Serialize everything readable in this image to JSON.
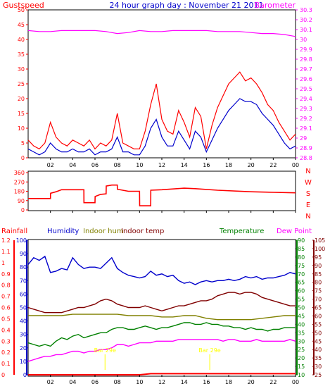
{
  "chart_data": {
    "type": "line",
    "title": "24 hour graph day : November 21 2011",
    "x_tick_labels": [
      "02",
      "04",
      "06",
      "08",
      "10",
      "12",
      "14",
      "16",
      "18",
      "20",
      "22",
      "00"
    ],
    "colors": {
      "gust": "#ff0000",
      "wind": "#0000cc",
      "barometer": "#ff00ff",
      "direction": "#ff0000",
      "humidity": "#0000cc",
      "indoor_hum": "#808000",
      "indoor_temp": "#800000",
      "temperature": "#008000",
      "dew_point": "#ff00ff",
      "rainfall": "#ff0000",
      "rain_marker": "#ffff00"
    },
    "panels": [
      {
        "id": "wind",
        "left_label": "Gustspeed",
        "right_label": "Barometer",
        "left_ticks": [
          "0",
          "5",
          "10",
          "15",
          "20",
          "25",
          "30",
          "35",
          "40",
          "45",
          "50"
        ],
        "right_ticks": [
          "28.8",
          "28.9",
          "29",
          "29.1",
          "29.2",
          "29.3",
          "29.4",
          "29.5",
          "29.6",
          "29.7",
          "29.8",
          "29.9",
          "30",
          "30.1",
          "30.2",
          "30.3"
        ],
        "ylim_left": [
          0,
          50
        ],
        "ylim_right": [
          28.8,
          30.3
        ],
        "series": [
          {
            "name": "Gustspeed",
            "axis": "left",
            "x": [
              0,
              0.5,
              1,
              1.5,
              2,
              2.5,
              3,
              3.5,
              4,
              4.5,
              5,
              5.5,
              6,
              6.5,
              7,
              7.5,
              8,
              8.5,
              9,
              9.5,
              10,
              10.5,
              11,
              11.5,
              12,
              12.5,
              13,
              13.5,
              14,
              14.5,
              15,
              15.5,
              16,
              16.5,
              17,
              17.5,
              18,
              18.5,
              19,
              19.5,
              20,
              20.5,
              21,
              21.5,
              22,
              22.5,
              23,
              23.5,
              24
            ],
            "values": [
              6,
              4,
              3,
              5,
              12,
              7,
              5,
              4,
              6,
              5,
              4,
              6,
              3,
              5,
              4,
              6,
              15,
              5,
              4,
              3,
              3,
              9,
              18,
              25,
              13,
              9,
              8,
              16,
              12,
              7,
              17,
              14,
              3,
              11,
              17,
              21,
              25,
              27,
              29,
              26,
              27,
              25,
              22,
              18,
              16,
              12,
              9,
              6,
              8
            ]
          },
          {
            "name": "Windspeed",
            "axis": "left",
            "x": [
              0,
              0.5,
              1,
              1.5,
              2,
              2.5,
              3,
              3.5,
              4,
              4.5,
              5,
              5.5,
              6,
              6.5,
              7,
              7.5,
              8,
              8.5,
              9,
              9.5,
              10,
              10.5,
              11,
              11.5,
              12,
              12.5,
              13,
              13.5,
              14,
              14.5,
              15,
              15.5,
              16,
              16.5,
              17,
              17.5,
              18,
              18.5,
              19,
              19.5,
              20,
              20.5,
              21,
              21.5,
              22,
              22.5,
              23,
              23.5,
              24
            ],
            "values": [
              3,
              2,
              1,
              2,
              5,
              3,
              2,
              2,
              3,
              2,
              2,
              3,
              1,
              2,
              2,
              3,
              7,
              2,
              2,
              1,
              1,
              4,
              10,
              13,
              7,
              4,
              4,
              9,
              6,
              3,
              9,
              7,
              2,
              6,
              10,
              13,
              16,
              18,
              20,
              19,
              19,
              18,
              15,
              13,
              11,
              8,
              5,
              3,
              4
            ]
          },
          {
            "name": "Barometer",
            "axis": "right",
            "x": [
              0,
              1,
              2,
              3,
              4,
              5,
              6,
              7,
              8,
              9,
              10,
              11,
              12,
              13,
              14,
              15,
              16,
              17,
              18,
              19,
              20,
              21,
              22,
              23,
              24
            ],
            "values": [
              30.09,
              30.08,
              30.08,
              30.09,
              30.09,
              30.09,
              30.09,
              30.08,
              30.06,
              30.07,
              30.09,
              30.08,
              30.08,
              30.09,
              30.09,
              30.09,
              30.09,
              30.08,
              30.08,
              30.08,
              30.07,
              30.06,
              30.06,
              30.05,
              30.03
            ]
          }
        ]
      },
      {
        "id": "direction",
        "left_ticks": [
          "0",
          "90",
          "180",
          "270",
          "360"
        ],
        "right_letters": [
          "N",
          "W",
          "S",
          "E",
          "N"
        ],
        "ylim": [
          0,
          360
        ],
        "series": [
          {
            "name": "Wind direction",
            "x": [
              0,
              2,
              2.01,
              2.5,
              3,
              5,
              5.01,
              6,
              6.01,
              6.5,
              7,
              7.01,
              7.5,
              8,
              8.01,
              9,
              10,
              10.01,
              11,
              11.01,
              12,
              14,
              15,
              17,
              20,
              22,
              24
            ],
            "values": [
              110,
              110,
              160,
              175,
              195,
              195,
              70,
              70,
              130,
              150,
              155,
              230,
              240,
              240,
              200,
              180,
              180,
              40,
              40,
              190,
              195,
              210,
              205,
              190,
              175,
              170,
              165
            ]
          }
        ]
      },
      {
        "id": "temperature",
        "labels": {
          "rainfall": "Rainfall",
          "humidity": "Humidity",
          "indoor_hum": "Indoor hum",
          "indoor_temp": "Indoor temp",
          "temperature": "Temperature",
          "dew_point": "Dew Point"
        },
        "rainfall_ticks": [
          "0",
          "0.1",
          "0.2",
          "0.3",
          "0.4",
          "0.5",
          "0.6",
          "0.7",
          "0.8",
          "0.9",
          "1",
          "1.1",
          "1.2"
        ],
        "humidity_ticks": [
          "0",
          "10",
          "20",
          "30",
          "40",
          "50",
          "60",
          "70",
          "80",
          "90",
          "100"
        ],
        "temperature_ticks": [
          "10",
          "15",
          "20",
          "25",
          "30",
          "35",
          "40",
          "45",
          "50",
          "55",
          "60",
          "65",
          "70",
          "75",
          "80",
          "85",
          "90"
        ],
        "dewpoint_ticks": [
          "25",
          "30",
          "35",
          "40",
          "45",
          "50",
          "55",
          "60",
          "65",
          "70",
          "75",
          "80",
          "85",
          "90",
          "95",
          "100",
          "105"
        ],
        "ylim_humidity": [
          0,
          100
        ],
        "ylim_temperature": [
          10,
          90
        ],
        "series": [
          {
            "name": "Humidity",
            "axis": "humidity",
            "x": [
              0,
              0.5,
              1,
              1.5,
              2,
              2.5,
              3,
              3.5,
              4,
              4.5,
              5,
              5.5,
              6,
              6.5,
              7,
              7.5,
              8,
              8.5,
              9,
              9.5,
              10,
              10.5,
              11,
              11.5,
              12,
              12.5,
              13,
              13.5,
              14,
              14.5,
              15,
              15.5,
              16,
              16.5,
              17,
              17.5,
              18,
              18.5,
              19,
              19.5,
              20,
              20.5,
              21,
              21.5,
              22,
              22.5,
              23,
              23.5,
              24
            ],
            "values": [
              82,
              87,
              85,
              88,
              76,
              77,
              79,
              78,
              87,
              82,
              79,
              80,
              80,
              79,
              83,
              87,
              79,
              76,
              74,
              73,
              72,
              73,
              77,
              74,
              75,
              73,
              74,
              70,
              68,
              69,
              67,
              69,
              70,
              69,
              70,
              70,
              71,
              70,
              71,
              73,
              72,
              73,
              71,
              72,
              72,
              73,
              74,
              76,
              75
            ]
          },
          {
            "name": "Indoor temp",
            "axis": "temperature",
            "x": [
              0,
              0.5,
              1,
              1.5,
              2,
              2.5,
              3,
              3.5,
              4,
              4.5,
              5,
              5.5,
              6,
              6.5,
              7,
              7.5,
              8,
              8.5,
              9,
              9.5,
              10,
              10.5,
              11,
              11.5,
              12,
              12.5,
              13,
              13.5,
              14,
              14.5,
              15,
              15.5,
              16,
              16.5,
              17,
              17.5,
              18,
              18.5,
              19,
              19.5,
              20,
              20.5,
              21,
              21.5,
              22,
              22.5,
              23,
              23.5,
              24
            ],
            "values": [
              50,
              49,
              48,
              47,
              47,
              47,
              47,
              48,
              49,
              50,
              50,
              51,
              52,
              54,
              55,
              54,
              52,
              51,
              50,
              50,
              50,
              51,
              50,
              49,
              48,
              49,
              50,
              51,
              51,
              52,
              53,
              54,
              54,
              55,
              57,
              58,
              59,
              59,
              58,
              59,
              59,
              58,
              56,
              55,
              54,
              53,
              52,
              51,
              51
            ]
          },
          {
            "name": "Indoor hum",
            "axis": "humidity",
            "x": [
              0,
              1,
              2,
              3,
              4,
              5,
              6,
              7,
              8,
              9,
              10,
              11,
              12,
              13,
              14,
              15,
              16,
              17,
              18,
              19,
              20,
              21,
              22,
              23,
              24
            ],
            "values": [
              44,
              44,
              44,
              44,
              45,
              45,
              45,
              45,
              45,
              44,
              44,
              44,
              43,
              43,
              44,
              44,
              42,
              41,
              41,
              41,
              41,
              42,
              43,
              44,
              44
            ]
          },
          {
            "name": "Temperature",
            "axis": "temperature",
            "x": [
              0,
              0.5,
              1,
              1.5,
              2,
              2.5,
              3,
              3.5,
              4,
              4.5,
              5,
              5.5,
              6,
              6.5,
              7,
              7.5,
              8,
              8.5,
              9,
              9.5,
              10,
              10.5,
              11,
              11.5,
              12,
              12.5,
              13,
              13.5,
              14,
              14.5,
              15,
              15.5,
              16,
              16.5,
              17,
              17.5,
              18,
              18.5,
              19,
              19.5,
              20,
              20.5,
              21,
              21.5,
              22,
              22.5,
              23,
              23.5,
              24
            ],
            "values": [
              29,
              28,
              27,
              28,
              27,
              30,
              32,
              31,
              33,
              34,
              32,
              33,
              34,
              35,
              35,
              37,
              38,
              38,
              37,
              37,
              38,
              39,
              38,
              37,
              38,
              38,
              39,
              40,
              41,
              41,
              40,
              40,
              41,
              40,
              40,
              39,
              39,
              38,
              38,
              37,
              38,
              37,
              37,
              36,
              37,
              37,
              38,
              38,
              38
            ]
          },
          {
            "name": "Dew Point",
            "axis": "temperature",
            "x": [
              0,
              0.5,
              1,
              1.5,
              2,
              2.5,
              3,
              3.5,
              4,
              4.5,
              5,
              5.5,
              6,
              6.5,
              7,
              7.5,
              8,
              8.5,
              9,
              9.5,
              10,
              10.5,
              11,
              11.5,
              12,
              12.5,
              13,
              13.5,
              14,
              14.5,
              15,
              15.5,
              16,
              16.5,
              17,
              17.5,
              18,
              18.5,
              19,
              19.5,
              20,
              20.5,
              21,
              21.5,
              22,
              22.5,
              23,
              23.5,
              24
            ],
            "values": [
              18,
              19,
              20,
              21,
              21,
              22,
              22,
              23,
              24,
              24,
              23,
              24,
              24,
              25,
              25,
              26,
              28,
              28,
              27,
              28,
              29,
              29,
              29,
              30,
              30,
              30,
              30,
              31,
              31,
              31,
              31,
              31,
              31,
              31,
              31,
              30,
              31,
              31,
              30,
              30,
              30,
              31,
              30,
              30,
              30,
              30,
              30,
              31,
              30
            ]
          },
          {
            "name": "Rainfall",
            "axis": "rainfall",
            "x": [
              0,
              10,
              10.5,
              11,
              24
            ],
            "values": [
              0,
              0,
              0.005,
              0.01,
              0.01
            ]
          }
        ],
        "rain_markers": [
          {
            "x": 6.9,
            "label": "Bar 29e"
          },
          {
            "x": 16.3,
            "label": "Bar 29e"
          }
        ]
      }
    ]
  }
}
